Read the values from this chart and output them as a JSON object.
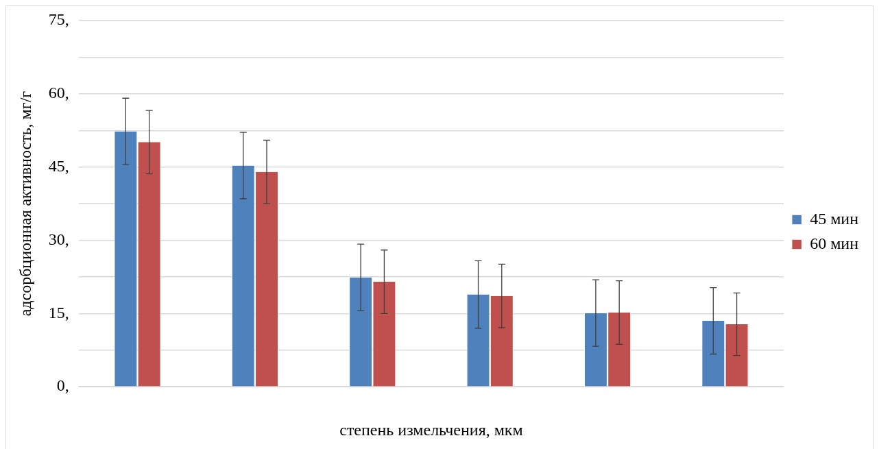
{
  "chart_data": {
    "type": "bar",
    "xlabel": "степень измельчения, мкм",
    "ylabel": "адсорбционная активность, мг/г",
    "categories": [
      null,
      null,
      null,
      null,
      null,
      null
    ],
    "series": [
      {
        "name": "45 мин",
        "color": "#4f81bd",
        "values": [
          52.3,
          45.3,
          22.4,
          18.9,
          15.1,
          13.5
        ],
        "errors": [
          6.8,
          6.8,
          6.8,
          6.9,
          6.8,
          6.8
        ]
      },
      {
        "name": "60 мин",
        "color": "#c0504d",
        "values": [
          50.1,
          44.0,
          21.5,
          18.6,
          15.2,
          12.8
        ],
        "errors": [
          6.5,
          6.5,
          6.5,
          6.5,
          6.5,
          6.4
        ]
      }
    ],
    "ylim": [
      0,
      75
    ],
    "yticks": [
      {
        "value": 0,
        "label": "0,"
      },
      {
        "value": 7.5,
        "label": null
      },
      {
        "value": 15,
        "label": "15,"
      },
      {
        "value": 22.5,
        "label": null
      },
      {
        "value": 30,
        "label": "30,"
      },
      {
        "value": 37.5,
        "label": null
      },
      {
        "value": 45,
        "label": "45,"
      },
      {
        "value": 52.5,
        "label": null
      },
      {
        "value": 60,
        "label": "60,"
      },
      {
        "value": 67.5,
        "label": null
      },
      {
        "value": 75,
        "label": "75,"
      }
    ],
    "grid": "y",
    "legend": "right",
    "tick_labels": "y"
  }
}
